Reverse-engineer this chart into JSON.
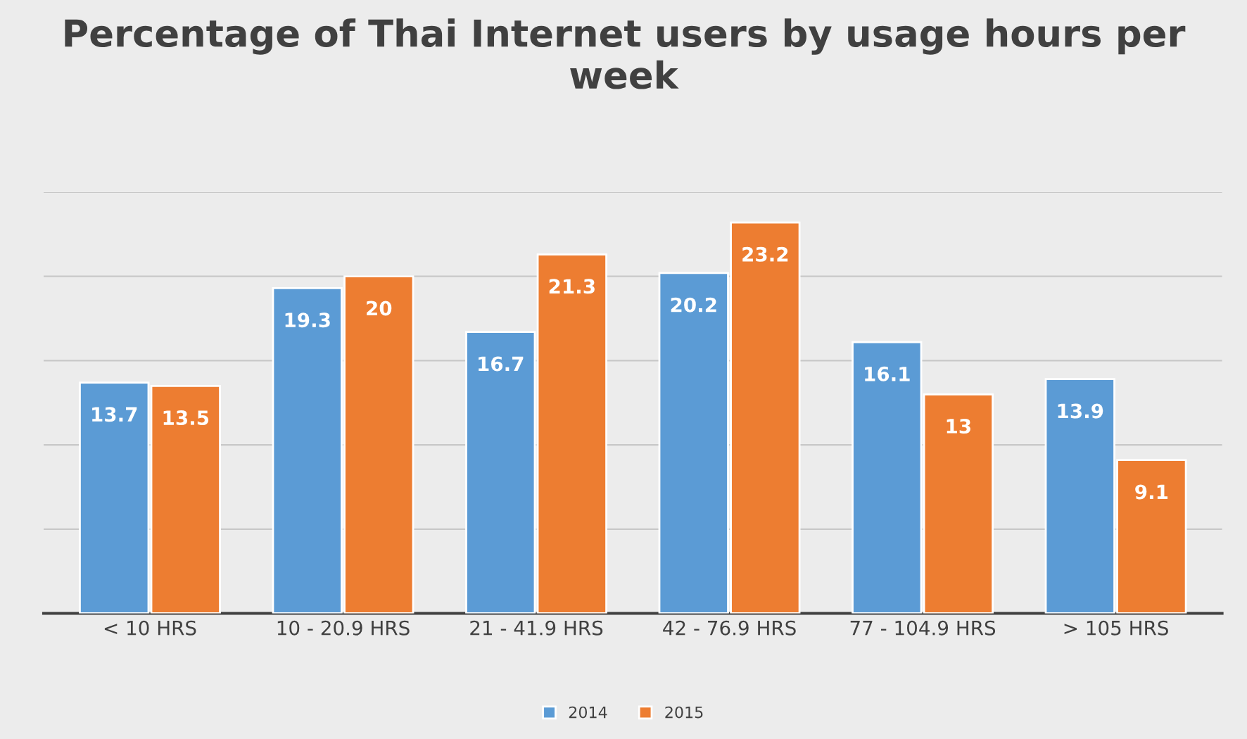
{
  "chart_data": {
    "type": "bar",
    "title": "Percentage of Thai Internet users by usage hours per week",
    "categories": [
      "< 10 HRS",
      "10 - 20.9 HRS",
      "21 - 41.9 HRS",
      "42 - 76.9 HRS",
      "77 - 104.9 HRS",
      "> 105 HRS"
    ],
    "series": [
      {
        "name": "2014",
        "color": "#5b9bd5",
        "values": [
          13.7,
          19.3,
          16.7,
          20.2,
          16.1,
          13.9
        ]
      },
      {
        "name": "2015",
        "color": "#ed7d31",
        "values": [
          13.5,
          20,
          21.3,
          23.2,
          13,
          9.1
        ]
      }
    ],
    "ylim": [
      0,
      25
    ],
    "yticks": [
      {
        "value": 0,
        "label": null
      },
      {
        "value": 5,
        "label": null
      },
      {
        "value": 10,
        "label": null
      },
      {
        "value": 15,
        "label": null
      },
      {
        "value": 20,
        "label": null
      },
      {
        "value": 25,
        "label": null
      }
    ],
    "tick_labels": "x",
    "grid": "y",
    "legend": "bottom",
    "data_labels": true
  }
}
